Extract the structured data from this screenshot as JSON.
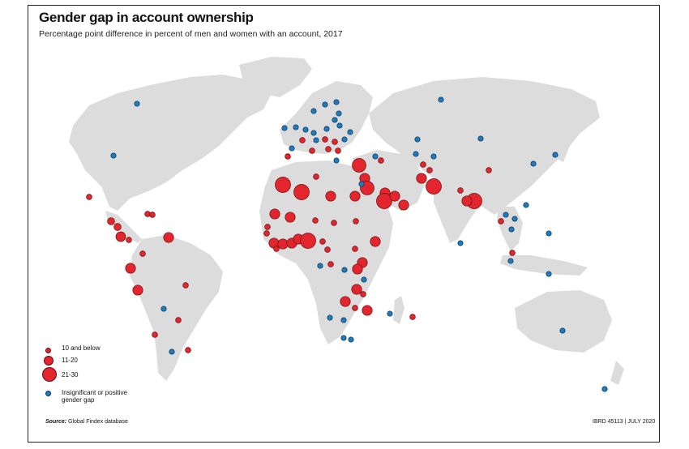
{
  "title": "Gender gap in account ownership",
  "subtitle": "Percentage point difference in percent of men and women with an account, 2017",
  "legend": {
    "items": [
      {
        "label": "10 and below",
        "category": "small"
      },
      {
        "label": "11-20",
        "category": "medium"
      },
      {
        "label": "21-30",
        "category": "large"
      },
      {
        "label": "Insignificant or positive gender gap",
        "category": "insignificant"
      }
    ]
  },
  "colors": {
    "gap": "#e3262d",
    "insignificant": "#1f7bbf",
    "land": "#dcdcdc",
    "background": "#ffffff"
  },
  "source": {
    "prefix": "Source:",
    "text": "Global Findex database"
  },
  "credit": "IBRD 45113 | JULY 2020"
}
